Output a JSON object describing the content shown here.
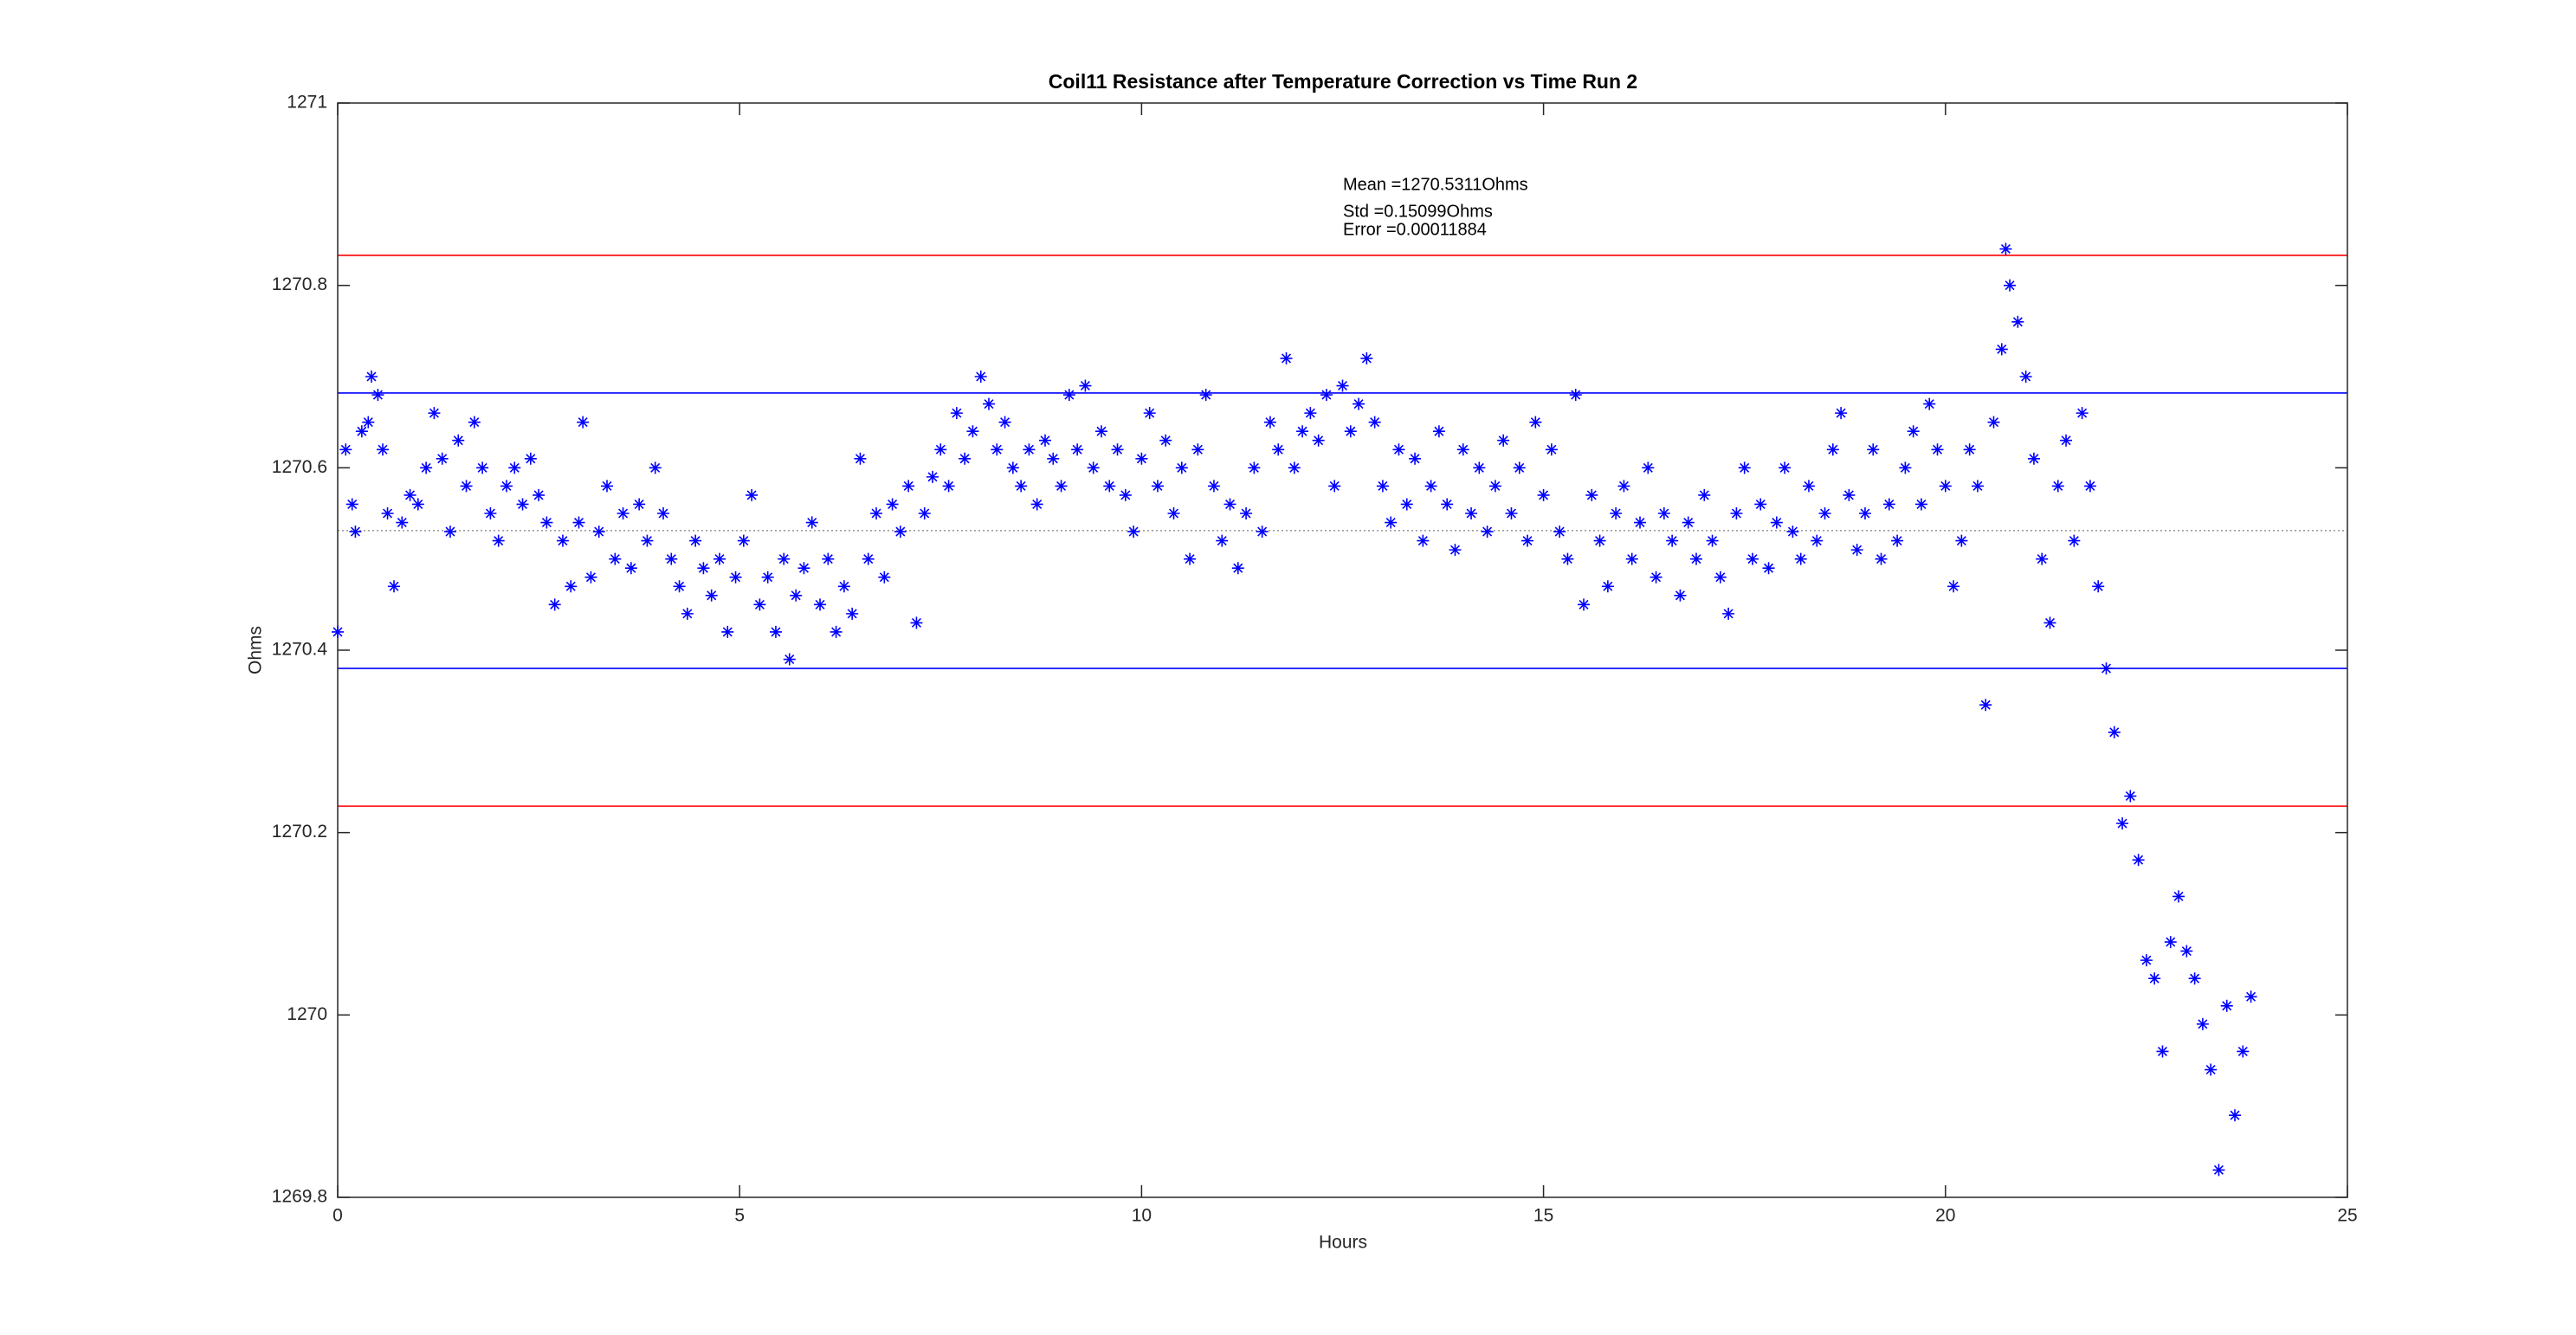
{
  "chart_data": {
    "type": "scatter",
    "title": "Coil11 Resistance after Temperature Correction vs Time Run 2",
    "x_label": "Hours",
    "y_label": "Ohms",
    "annotations": [
      "Mean =1270.5311Ohms",
      "Std =0.15099Ohms",
      "Error =0.00011884"
    ],
    "xlim": [
      0,
      25
    ],
    "xticks": [
      0,
      5,
      10,
      15,
      20,
      25
    ],
    "ylim": [
      1269.8,
      1271
    ],
    "yticks": [
      1269.8,
      1270,
      1270.2,
      1270.4,
      1270.6,
      1270.8,
      1271
    ],
    "reference_lines": [
      {
        "value": 1270.833,
        "color": "#ff0000",
        "style": "solid"
      },
      {
        "value": 1270.682,
        "color": "#0000ff",
        "style": "solid"
      },
      {
        "value": 1270.5311,
        "color": "#808080",
        "style": "dotted"
      },
      {
        "value": 1270.38,
        "color": "#0000ff",
        "style": "solid"
      },
      {
        "value": 1270.229,
        "color": "#ff0000",
        "style": "solid"
      }
    ],
    "series": [
      {
        "color": "#0000ff",
        "x": [
          0.0,
          0.1,
          0.18,
          0.22,
          0.3,
          0.38,
          0.42,
          0.5,
          0.56,
          0.62,
          0.7,
          0.8,
          0.9,
          1.0,
          1.1,
          1.2,
          1.3,
          1.4,
          1.5,
          1.6,
          1.7,
          1.8,
          1.9,
          2.0,
          2.1,
          2.2,
          2.3,
          2.4,
          2.5,
          2.6,
          2.7,
          2.8,
          2.9,
          3.0,
          3.05,
          3.15,
          3.25,
          3.35,
          3.45,
          3.55,
          3.65,
          3.75,
          3.85,
          3.95,
          4.05,
          4.15,
          4.25,
          4.35,
          4.45,
          4.55,
          4.65,
          4.75,
          4.85,
          4.95,
          5.05,
          5.15,
          5.25,
          5.35,
          5.45,
          5.55,
          5.62,
          5.7,
          5.8,
          5.9,
          6.0,
          6.1,
          6.2,
          6.3,
          6.4,
          6.5,
          6.6,
          6.7,
          6.8,
          6.9,
          7.0,
          7.1,
          7.2,
          7.3,
          7.4,
          7.5,
          7.6,
          7.7,
          7.8,
          7.9,
          8.0,
          8.1,
          8.2,
          8.3,
          8.4,
          8.5,
          8.6,
          8.7,
          8.8,
          8.9,
          9.0,
          9.1,
          9.2,
          9.3,
          9.4,
          9.5,
          9.6,
          9.7,
          9.8,
          9.9,
          10.0,
          10.1,
          10.2,
          10.3,
          10.4,
          10.5,
          10.6,
          10.7,
          10.8,
          10.9,
          11.0,
          11.1,
          11.2,
          11.3,
          11.4,
          11.5,
          11.6,
          11.7,
          11.8,
          11.9,
          12.0,
          12.1,
          12.2,
          12.3,
          12.4,
          12.5,
          12.6,
          12.7,
          12.8,
          12.9,
          13.0,
          13.1,
          13.2,
          13.3,
          13.4,
          13.5,
          13.6,
          13.7,
          13.8,
          13.9,
          14.0,
          14.1,
          14.2,
          14.3,
          14.4,
          14.5,
          14.6,
          14.7,
          14.8,
          14.9,
          15.0,
          15.1,
          15.2,
          15.3,
          15.4,
          15.5,
          15.6,
          15.7,
          15.8,
          15.9,
          16.0,
          16.1,
          16.2,
          16.3,
          16.4,
          16.5,
          16.6,
          16.7,
          16.8,
          16.9,
          17.0,
          17.1,
          17.2,
          17.3,
          17.4,
          17.5,
          17.6,
          17.7,
          17.8,
          17.9,
          18.0,
          18.1,
          18.2,
          18.3,
          18.4,
          18.5,
          18.6,
          18.7,
          18.8,
          18.9,
          19.0,
          19.1,
          19.2,
          19.3,
          19.4,
          19.5,
          19.6,
          19.7,
          19.8,
          19.9,
          20.0,
          20.1,
          20.2,
          20.3,
          20.4,
          20.5,
          20.6,
          20.7,
          20.75,
          20.8,
          20.9,
          21.0,
          21.1,
          21.2,
          21.3,
          21.4,
          21.5,
          21.6,
          21.7,
          21.8,
          21.9,
          22.0,
          22.1,
          22.2,
          22.3,
          22.4,
          22.5,
          22.6,
          22.7,
          22.8,
          22.9,
          23.0,
          23.1,
          23.2,
          23.3,
          23.4,
          23.5,
          23.6,
          23.7,
          23.8
        ],
        "values": [
          1270.42,
          1270.62,
          1270.56,
          1270.53,
          1270.64,
          1270.65,
          1270.7,
          1270.68,
          1270.62,
          1270.55,
          1270.47,
          1270.54,
          1270.57,
          1270.56,
          1270.6,
          1270.66,
          1270.61,
          1270.53,
          1270.63,
          1270.58,
          1270.65,
          1270.6,
          1270.55,
          1270.52,
          1270.58,
          1270.6,
          1270.56,
          1270.61,
          1270.57,
          1270.54,
          1270.45,
          1270.52,
          1270.47,
          1270.54,
          1270.65,
          1270.48,
          1270.53,
          1270.58,
          1270.5,
          1270.55,
          1270.49,
          1270.56,
          1270.52,
          1270.6,
          1270.55,
          1270.5,
          1270.47,
          1270.44,
          1270.52,
          1270.49,
          1270.46,
          1270.5,
          1270.42,
          1270.48,
          1270.52,
          1270.57,
          1270.45,
          1270.48,
          1270.42,
          1270.5,
          1270.39,
          1270.46,
          1270.49,
          1270.54,
          1270.45,
          1270.5,
          1270.42,
          1270.47,
          1270.44,
          1270.61,
          1270.5,
          1270.55,
          1270.48,
          1270.56,
          1270.53,
          1270.58,
          1270.43,
          1270.55,
          1270.59,
          1270.62,
          1270.58,
          1270.66,
          1270.61,
          1270.64,
          1270.7,
          1270.67,
          1270.62,
          1270.65,
          1270.6,
          1270.58,
          1270.62,
          1270.56,
          1270.63,
          1270.61,
          1270.58,
          1270.68,
          1270.62,
          1270.69,
          1270.6,
          1270.64,
          1270.58,
          1270.62,
          1270.57,
          1270.53,
          1270.61,
          1270.66,
          1270.58,
          1270.63,
          1270.55,
          1270.6,
          1270.5,
          1270.62,
          1270.68,
          1270.58,
          1270.52,
          1270.56,
          1270.49,
          1270.55,
          1270.6,
          1270.53,
          1270.65,
          1270.62,
          1270.72,
          1270.6,
          1270.64,
          1270.66,
          1270.63,
          1270.68,
          1270.58,
          1270.69,
          1270.64,
          1270.67,
          1270.72,
          1270.65,
          1270.58,
          1270.54,
          1270.62,
          1270.56,
          1270.61,
          1270.52,
          1270.58,
          1270.64,
          1270.56,
          1270.51,
          1270.62,
          1270.55,
          1270.6,
          1270.53,
          1270.58,
          1270.63,
          1270.55,
          1270.6,
          1270.52,
          1270.65,
          1270.57,
          1270.62,
          1270.53,
          1270.5,
          1270.68,
          1270.45,
          1270.57,
          1270.52,
          1270.47,
          1270.55,
          1270.58,
          1270.5,
          1270.54,
          1270.6,
          1270.48,
          1270.55,
          1270.52,
          1270.46,
          1270.54,
          1270.5,
          1270.57,
          1270.52,
          1270.48,
          1270.44,
          1270.55,
          1270.6,
          1270.5,
          1270.56,
          1270.49,
          1270.54,
          1270.6,
          1270.53,
          1270.5,
          1270.58,
          1270.52,
          1270.55,
          1270.62,
          1270.66,
          1270.57,
          1270.51,
          1270.55,
          1270.62,
          1270.5,
          1270.56,
          1270.52,
          1270.6,
          1270.64,
          1270.56,
          1270.67,
          1270.62,
          1270.58,
          1270.47,
          1270.52,
          1270.62,
          1270.58,
          1270.34,
          1270.65,
          1270.73,
          1270.84,
          1270.8,
          1270.76,
          1270.7,
          1270.61,
          1270.5,
          1270.43,
          1270.58,
          1270.63,
          1270.52,
          1270.66,
          1270.58,
          1270.47,
          1270.38,
          1270.31,
          1270.21,
          1270.24,
          1270.17,
          1270.06,
          1270.04,
          1269.96,
          1270.08,
          1270.13,
          1270.07,
          1270.04,
          1269.99,
          1269.94,
          1269.83,
          1270.01,
          1269.89,
          1269.96,
          1270.02
        ]
      }
    ]
  }
}
